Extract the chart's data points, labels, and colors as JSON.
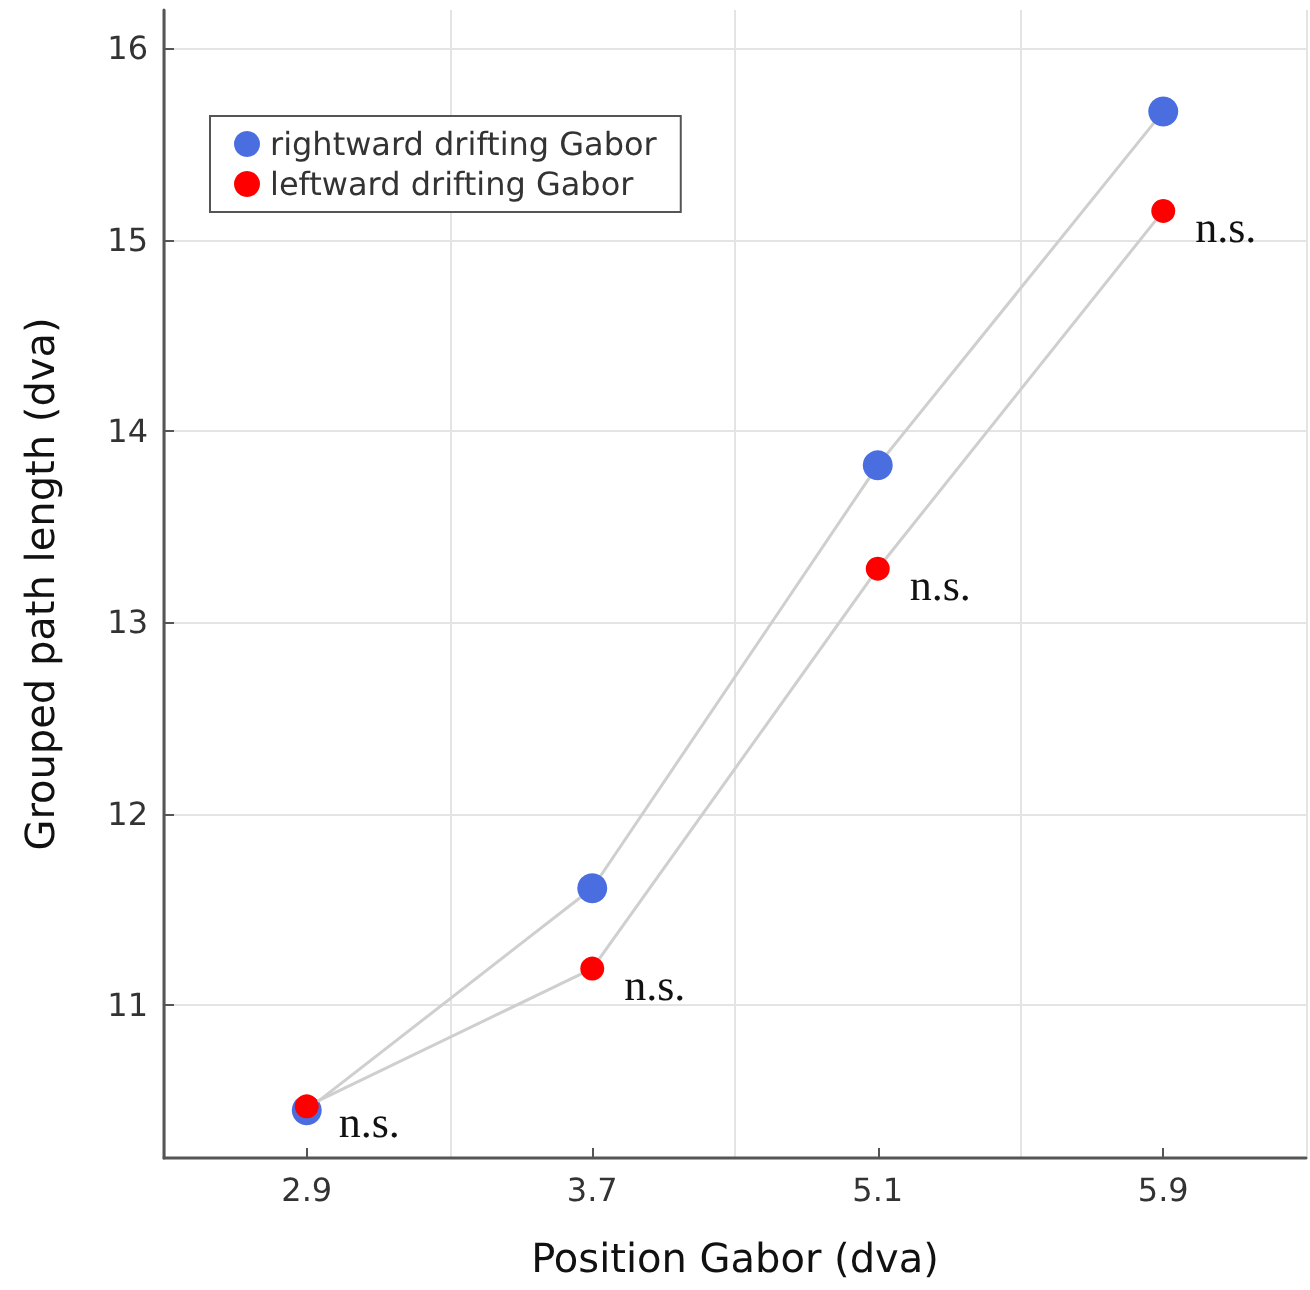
{
  "chart_data": {
    "type": "line",
    "xlabel": "Position Gabor (dva)",
    "ylabel": "Grouped path length (dva)",
    "categories": [
      "2.9",
      "3.7",
      "5.1",
      "5.9"
    ],
    "series": [
      {
        "name": "rightward drifting Gabor",
        "color": "#4a6ee0",
        "values": [
          10.45,
          11.61,
          13.82,
          15.67
        ]
      },
      {
        "name": "leftward drifting Gabor",
        "color": "#ff0000",
        "values": [
          10.47,
          11.19,
          13.28,
          15.15
        ]
      }
    ],
    "ylim": [
      10.2,
      16.2
    ],
    "yticks": [
      11,
      12,
      13,
      14,
      15,
      16
    ],
    "grid": true,
    "legend": "top left",
    "marker": "circle",
    "line_style": "solid",
    "annotations": [
      {
        "text": "n.s.",
        "x": "2.9",
        "y": 10.47
      },
      {
        "text": "n.s.",
        "x": "3.7",
        "y": 11.19
      },
      {
        "text": "n.s.",
        "x": "5.1",
        "y": 13.28
      },
      {
        "text": "n.s.",
        "x": "5.9",
        "y": 15.15
      }
    ]
  }
}
